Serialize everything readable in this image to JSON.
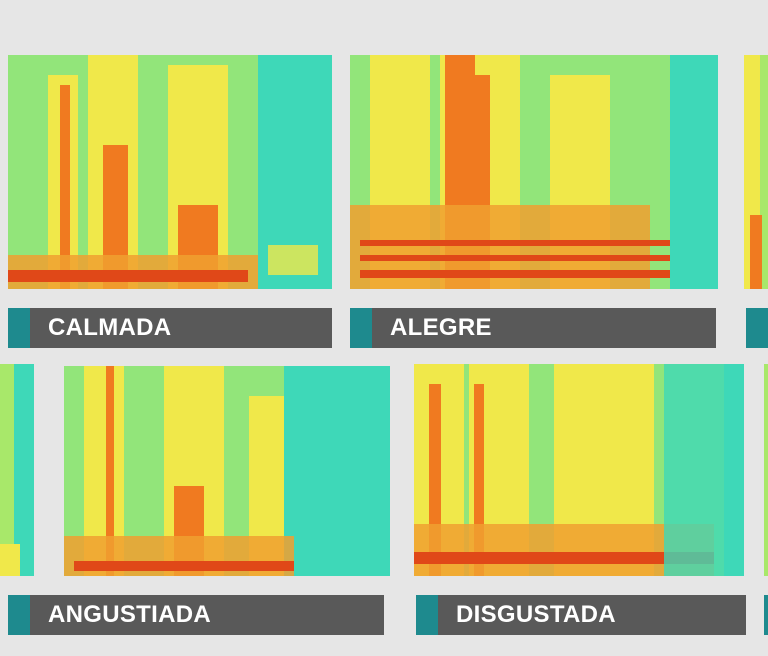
{
  "palette": {
    "accent": "#1e8a8e",
    "label_bar": "#595959",
    "label_text": "#ffffff",
    "background": "#e6e6e6",
    "spectrogram_low": "#3ed8b8",
    "spectrogram_mid": "#f0e84a",
    "spectrogram_high": "#f07a20",
    "spectrogram_peak": "#e04818"
  },
  "panels": [
    {
      "label": "CALMADA"
    },
    {
      "label": "ALEGRE"
    },
    {
      "label": ""
    },
    {
      "label": ""
    },
    {
      "label": "ANGUSTIADA"
    },
    {
      "label": "DISGUSTADA"
    },
    {
      "label": ""
    }
  ]
}
